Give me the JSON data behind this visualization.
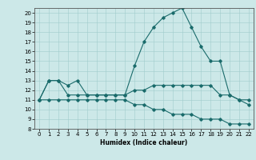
{
  "xlabel": "Humidex (Indice chaleur)",
  "background_color": "#cce8e8",
  "line_color": "#1a6b6b",
  "xlim": [
    -0.5,
    22.5
  ],
  "ylim": [
    8,
    20.5
  ],
  "yticks": [
    8,
    9,
    10,
    11,
    12,
    13,
    14,
    15,
    16,
    17,
    18,
    19,
    20
  ],
  "xticks": [
    0,
    1,
    2,
    3,
    4,
    5,
    6,
    7,
    8,
    9,
    10,
    11,
    12,
    13,
    14,
    15,
    16,
    17,
    18,
    19,
    20,
    21,
    22
  ],
  "line1_x": [
    0,
    1,
    2,
    3,
    4,
    5,
    6,
    7,
    8,
    9,
    10,
    11,
    12,
    13,
    14,
    15,
    16,
    17,
    18,
    19,
    20,
    21,
    22
  ],
  "line1_y": [
    11.0,
    13.0,
    13.0,
    12.5,
    13.0,
    11.5,
    11.5,
    11.5,
    11.5,
    11.5,
    12.0,
    12.0,
    12.5,
    12.5,
    12.5,
    12.5,
    12.5,
    12.5,
    12.5,
    11.5,
    11.5,
    11.0,
    11.0
  ],
  "line2_x": [
    0,
    1,
    2,
    3,
    4,
    5,
    6,
    7,
    8,
    9,
    10,
    11,
    12,
    13,
    14,
    15,
    16,
    17,
    18,
    19,
    20,
    21,
    22
  ],
  "line2_y": [
    11.0,
    13.0,
    13.0,
    11.5,
    11.5,
    11.5,
    11.5,
    11.5,
    11.5,
    11.5,
    14.5,
    17.0,
    18.5,
    19.5,
    20.0,
    20.5,
    18.5,
    16.5,
    15.0,
    15.0,
    11.5,
    11.0,
    10.5
  ],
  "line3_x": [
    0,
    1,
    2,
    3,
    4,
    5,
    6,
    7,
    8,
    9,
    10,
    11,
    12,
    13,
    14,
    15,
    16,
    17,
    18,
    19,
    20,
    21,
    22
  ],
  "line3_y": [
    11.0,
    11.0,
    11.0,
    11.0,
    11.0,
    11.0,
    11.0,
    11.0,
    11.0,
    11.0,
    10.5,
    10.5,
    10.0,
    10.0,
    9.5,
    9.5,
    9.5,
    9.0,
    9.0,
    9.0,
    8.5,
    8.5,
    8.5
  ]
}
